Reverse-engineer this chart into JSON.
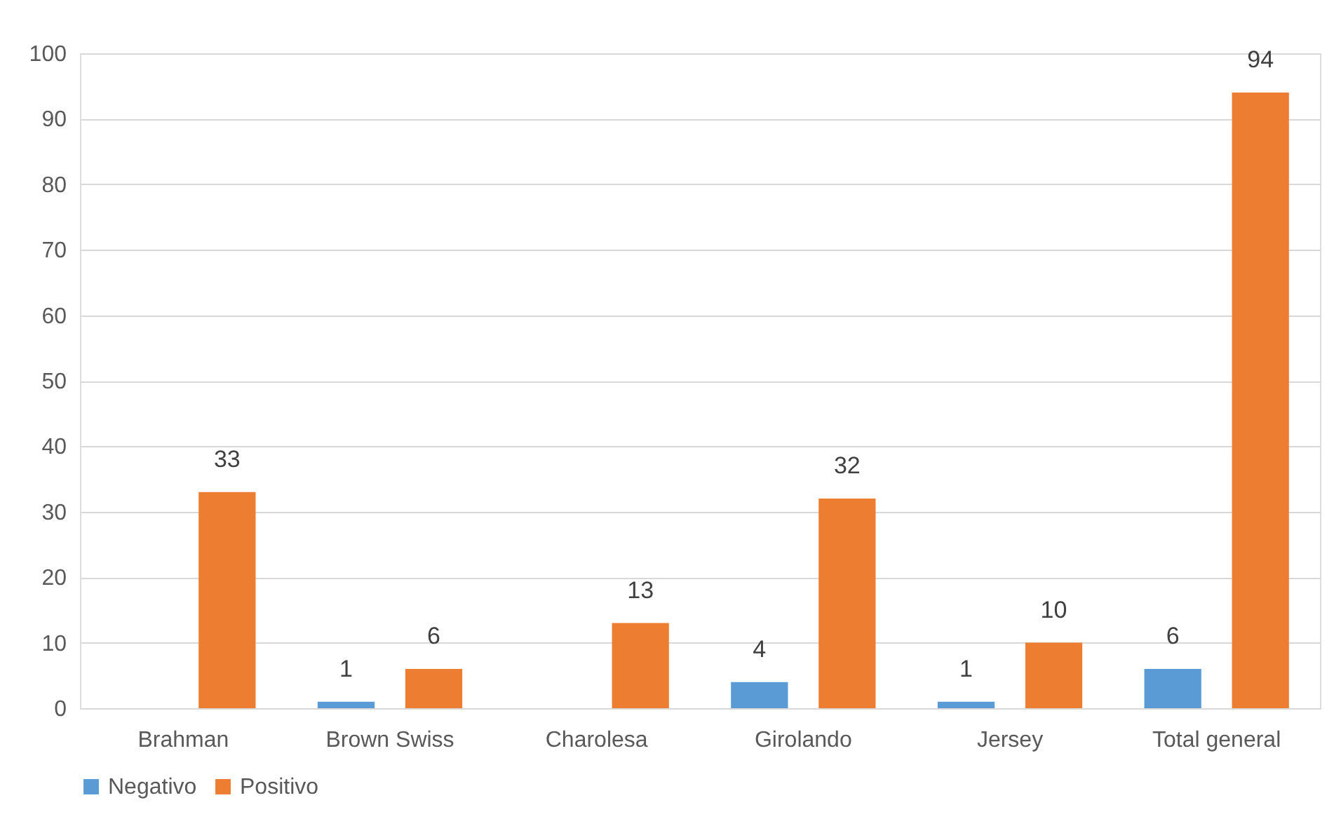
{
  "chart_data": {
    "type": "bar",
    "categories": [
      "Brahman",
      "Brown Swiss",
      "Charolesa",
      "Girolando",
      "Jersey",
      "Total general"
    ],
    "series": [
      {
        "name": "Negativo",
        "color": "#5b9bd5",
        "values": [
          null,
          1,
          null,
          4,
          1,
          6
        ]
      },
      {
        "name": "Positivo",
        "color": "#ed7d31",
        "values": [
          33,
          6,
          13,
          32,
          10,
          94
        ]
      }
    ],
    "ylim": [
      0,
      100
    ],
    "yticks": [
      0,
      10,
      20,
      30,
      40,
      50,
      60,
      70,
      80,
      90,
      100
    ],
    "grid": "y",
    "legend": "bottom",
    "data_labels": true
  }
}
